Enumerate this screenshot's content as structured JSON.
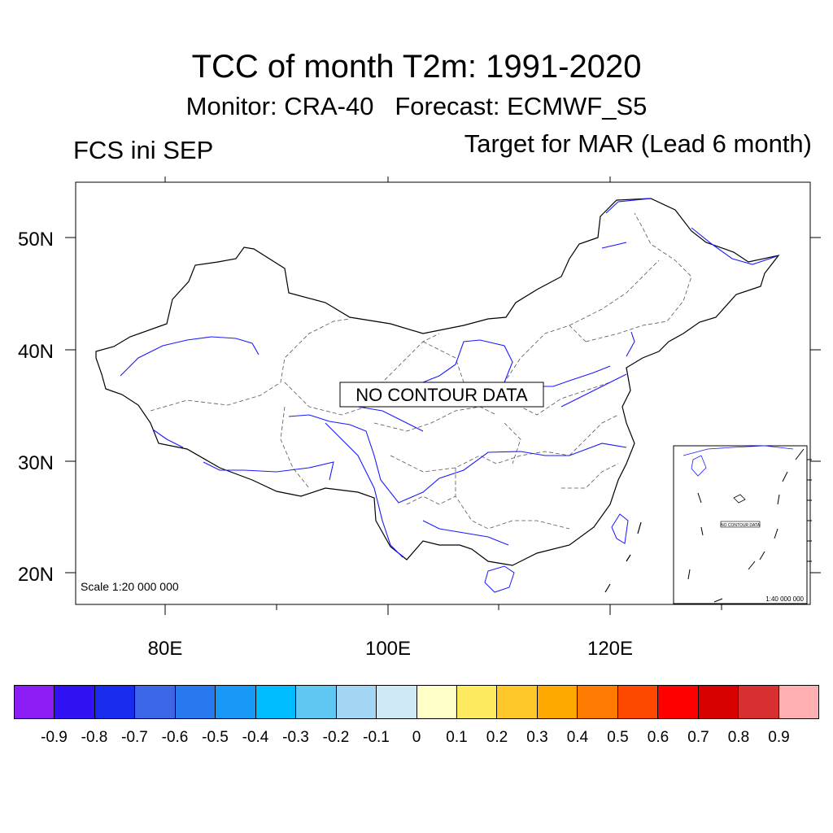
{
  "title": "TCC of month T2m: 1991-2020",
  "subtitle": "Monitor: CRA-40   Forecast: ECMWF_S5",
  "left_string": "FCS ini SEP",
  "right_string": "Target for MAR (Lead 6 month)",
  "map": {
    "no_data_text": "NO CONTOUR DATA",
    "scale_text": "Scale 1:20 000 000",
    "lat_ticks": [
      "50N",
      "40N",
      "30N",
      "20N"
    ],
    "lon_ticks": [
      "80E",
      "100E",
      "120E"
    ],
    "inset": {
      "no_data_text": "NO CONTOUR DATA",
      "scale_text": "1:40 000 000"
    },
    "colors": {
      "boundary": "#000000",
      "province": "#444444",
      "river": "#1a1aff"
    }
  },
  "colorbar": {
    "labels": [
      "-0.9",
      "-0.8",
      "-0.7",
      "-0.6",
      "-0.5",
      "-0.4",
      "-0.3",
      "-0.2",
      "-0.1",
      "0",
      "0.1",
      "0.2",
      "0.3",
      "0.4",
      "0.5",
      "0.6",
      "0.7",
      "0.8",
      "0.9"
    ],
    "colors": [
      "#8d1df5",
      "#3012f5",
      "#1a2bf0",
      "#3d66e6",
      "#2878f0",
      "#1899f8",
      "#00bdff",
      "#60c6f2",
      "#a2d6f2",
      "#cfe9f7",
      "#ffffc8",
      "#ffeb60",
      "#ffc82a",
      "#ffa800",
      "#ff7a00",
      "#ff4800",
      "#ff0000",
      "#d80000",
      "#d83030",
      "#ffafaf"
    ]
  }
}
